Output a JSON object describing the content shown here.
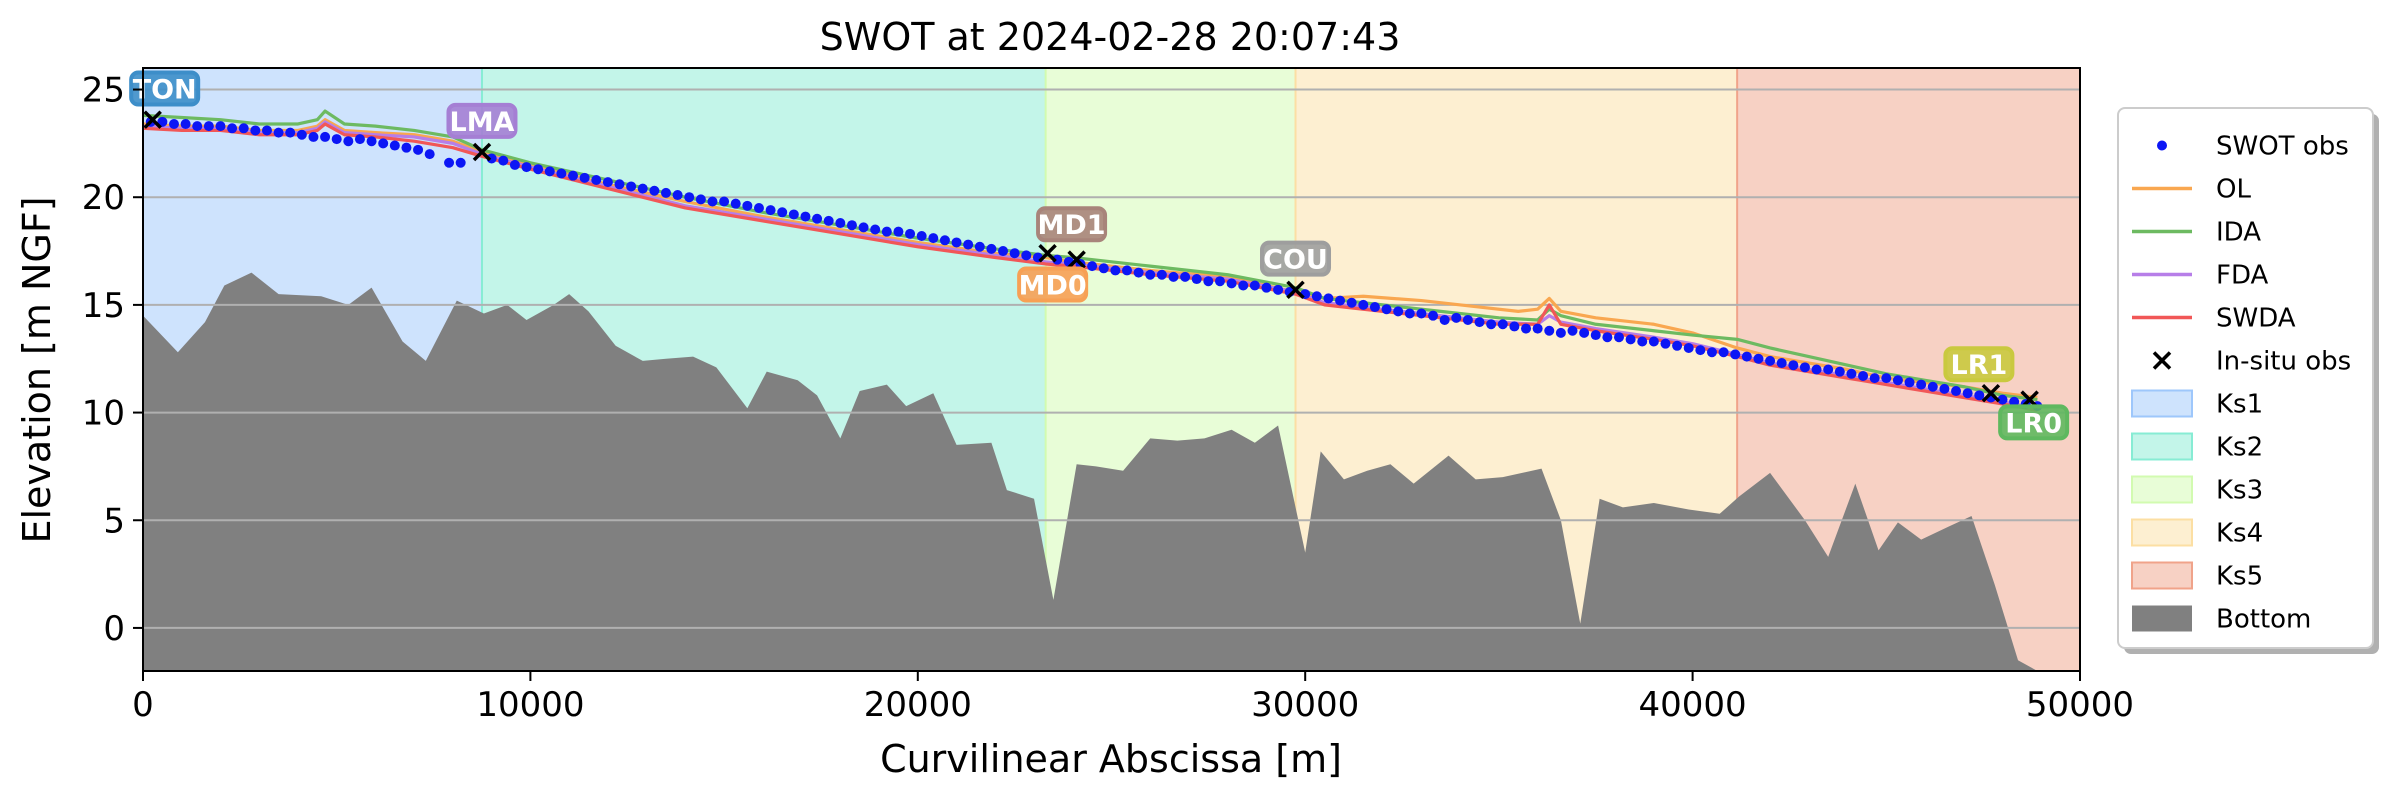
{
  "chart_data": {
    "type": "line",
    "title": "SWOT at 2024-02-28 20:07:43",
    "xlabel": "Curvilinear Abscissa [m]",
    "ylabel": "Elevation [m NGF]",
    "xlim": [
      0,
      50000
    ],
    "ylim": [
      -2,
      26
    ],
    "xticks": [
      0,
      10000,
      20000,
      30000,
      40000,
      50000
    ],
    "yticks": [
      0,
      5,
      10,
      15,
      20,
      25
    ],
    "grid": "y",
    "legend_position": "right-outside",
    "zones": [
      {
        "name": "Ks1",
        "x0": 0,
        "x1": 8750,
        "color": "#9ec7fb"
      },
      {
        "name": "Ks2",
        "x0": 8750,
        "x1": 23300,
        "color": "#87ecd4"
      },
      {
        "name": "Ks3",
        "x0": 23300,
        "x1": 29750,
        "color": "#d2fbb0"
      },
      {
        "name": "Ks4",
        "x0": 29750,
        "x1": 41150,
        "color": "#fcdfa3"
      },
      {
        "name": "Ks5",
        "x0": 41150,
        "x1": 50000,
        "color": "#f0a38a"
      }
    ],
    "bottom": {
      "name": "Bottom",
      "color": "#808080",
      "x": [
        0,
        900,
        1600,
        2100,
        2800,
        3500,
        4600,
        5300,
        5900,
        6700,
        7300,
        8100,
        8800,
        9400,
        9900,
        10600,
        11000,
        11500,
        12200,
        12900,
        13500,
        14200,
        14800,
        15600,
        16100,
        16900,
        17400,
        18000,
        18500,
        19200,
        19700,
        20400,
        21000,
        21900,
        22300,
        23000,
        23500,
        24100,
        24600,
        25300,
        26000,
        26700,
        27400,
        28100,
        28700,
        29300,
        30000,
        30400,
        31000,
        31600,
        32200,
        32800,
        33700,
        34400,
        35100,
        36100,
        36600,
        37100,
        37600,
        38200,
        39000,
        39900,
        40700,
        41200,
        42000,
        42900,
        43500,
        44200,
        44800,
        45300,
        45900,
        46600,
        47200,
        47800,
        48400,
        48900,
        50000
      ],
      "y": [
        14.5,
        12.8,
        14.2,
        15.9,
        16.5,
        15.5,
        15.4,
        15.0,
        15.8,
        13.3,
        12.4,
        15.2,
        14.6,
        15.0,
        14.3,
        15.0,
        15.5,
        14.7,
        13.1,
        12.4,
        12.5,
        12.6,
        12.1,
        10.2,
        11.9,
        11.5,
        10.8,
        8.8,
        11.0,
        11.3,
        10.3,
        10.9,
        8.5,
        8.6,
        6.4,
        6.0,
        1.3,
        7.6,
        7.5,
        7.3,
        8.8,
        8.7,
        8.8,
        9.2,
        8.6,
        9.4,
        3.5,
        8.2,
        6.9,
        7.3,
        7.6,
        6.7,
        8.0,
        6.9,
        7.0,
        7.4,
        5.0,
        0.2,
        6.0,
        5.6,
        5.8,
        5.5,
        5.3,
        6.1,
        7.2,
        5.0,
        3.3,
        6.7,
        3.6,
        4.9,
        4.1,
        4.7,
        5.2,
        2.0,
        -1.5,
        -2.0,
        -2.0
      ]
    },
    "series": [
      {
        "name": "OL",
        "color": "#f9a750",
        "x": [
          0,
          1000,
          2000,
          3000,
          4000,
          4500,
          4700,
          5200,
          6000,
          7000,
          8000,
          8750,
          10000,
          12000,
          14000,
          16000,
          18000,
          20000,
          22000,
          23300,
          24000,
          26000,
          28000,
          29750,
          30500,
          31500,
          33000,
          34500,
          35500,
          36000,
          36300,
          36600,
          37500,
          39000,
          40000,
          41150,
          42000,
          43000,
          44000,
          45000,
          46000,
          47000,
          48000,
          48900
        ],
        "y": [
          23.4,
          23.3,
          23.3,
          23.1,
          23.1,
          23.3,
          23.6,
          23.1,
          23.0,
          22.9,
          22.6,
          22.1,
          21.5,
          20.6,
          19.8,
          19.1,
          18.5,
          17.9,
          17.4,
          17.2,
          17.0,
          16.6,
          16.3,
          15.6,
          15.3,
          15.4,
          15.2,
          14.9,
          14.7,
          14.8,
          15.3,
          14.7,
          14.4,
          14.1,
          13.7,
          13.0,
          12.6,
          12.3,
          12.0,
          11.6,
          11.4,
          11.2,
          10.9,
          10.7
        ]
      },
      {
        "name": "IDA",
        "color": "#6dba61",
        "x": [
          0,
          1000,
          2000,
          3000,
          4000,
          4500,
          4700,
          5200,
          6000,
          7000,
          8000,
          8750,
          10000,
          12000,
          14000,
          16000,
          18000,
          20000,
          22000,
          23300,
          24000,
          26000,
          28000,
          29750,
          30500,
          32000,
          33500,
          35000,
          36000,
          36300,
          36600,
          37500,
          39000,
          40000,
          41150,
          42000,
          43000,
          44000,
          45000,
          46000,
          47000,
          48000,
          48900
        ],
        "y": [
          23.8,
          23.7,
          23.6,
          23.4,
          23.4,
          23.6,
          24.0,
          23.4,
          23.3,
          23.1,
          22.8,
          22.2,
          21.6,
          20.8,
          20.0,
          19.3,
          18.7,
          18.1,
          17.6,
          17.3,
          17.2,
          16.8,
          16.4,
          15.8,
          15.3,
          15.0,
          14.7,
          14.4,
          14.3,
          14.8,
          14.5,
          14.1,
          13.8,
          13.6,
          13.4,
          13.0,
          12.6,
          12.2,
          11.8,
          11.5,
          11.2,
          10.8,
          10.6
        ]
      },
      {
        "name": "FDA",
        "color": "#b77ee8",
        "x": [
          0,
          1000,
          2000,
          3000,
          4000,
          4500,
          4700,
          5200,
          6000,
          7000,
          8000,
          8750,
          10000,
          12000,
          14000,
          16000,
          18000,
          20000,
          22000,
          23300,
          24000,
          26000,
          28000,
          29750,
          30500,
          32000,
          33500,
          35000,
          36000,
          36300,
          36600,
          37500,
          39000,
          40000,
          41150,
          42000,
          43000,
          44000,
          45000,
          46000,
          47000,
          48000,
          48900
        ],
        "y": [
          23.3,
          23.2,
          23.2,
          23.0,
          23.0,
          23.2,
          23.5,
          23.0,
          22.9,
          22.8,
          22.5,
          22.0,
          21.4,
          20.5,
          19.6,
          19.0,
          18.4,
          17.8,
          17.3,
          17.0,
          16.9,
          16.5,
          16.2,
          15.6,
          15.1,
          14.8,
          14.5,
          14.2,
          14.1,
          14.5,
          14.2,
          13.9,
          13.5,
          13.2,
          12.7,
          12.3,
          12.0,
          11.7,
          11.4,
          11.1,
          10.8,
          10.5,
          10.2
        ]
      },
      {
        "name": "SWDA",
        "color": "#f15757",
        "x": [
          0,
          1000,
          2000,
          3000,
          4000,
          4500,
          4700,
          5200,
          6000,
          7000,
          8000,
          8750,
          10000,
          12000,
          14000,
          16000,
          18000,
          20000,
          22000,
          23300,
          24000,
          26000,
          28000,
          29750,
          30500,
          32000,
          33500,
          35000,
          36000,
          36300,
          36600,
          37500,
          39000,
          40000,
          41150,
          42000,
          43000,
          44000,
          45000,
          46000,
          47000,
          48000,
          48900
        ],
        "y": [
          23.2,
          23.1,
          23.1,
          22.9,
          22.9,
          23.1,
          23.4,
          22.9,
          22.8,
          22.6,
          22.3,
          21.9,
          21.3,
          20.4,
          19.5,
          18.9,
          18.3,
          17.7,
          17.2,
          16.9,
          16.8,
          16.4,
          16.1,
          15.5,
          15.0,
          14.7,
          14.4,
          14.1,
          14.1,
          15.0,
          14.1,
          13.8,
          13.4,
          13.1,
          12.6,
          12.2,
          11.9,
          11.6,
          11.3,
          11.0,
          10.7,
          10.4,
          10.1
        ]
      }
    ],
    "swot_obs": {
      "name": "SWOT obs",
      "color": "#0c16f5",
      "x": [
        200,
        500,
        800,
        1100,
        1400,
        1700,
        2000,
        2300,
        2600,
        2900,
        3200,
        3500,
        3800,
        4100,
        4400,
        4700,
        5000,
        5300,
        5600,
        5900,
        6200,
        6500,
        6800,
        7100,
        7400,
        7900,
        8200,
        9000,
        9300,
        9600,
        9900,
        10200,
        10500,
        10800,
        11100,
        11400,
        11700,
        12000,
        12300,
        12600,
        12900,
        13200,
        13500,
        13800,
        14100,
        14400,
        14700,
        15000,
        15300,
        15600,
        15900,
        16200,
        16500,
        16800,
        17100,
        17400,
        17700,
        18000,
        18300,
        18600,
        18900,
        19200,
        19500,
        19800,
        20100,
        20400,
        20700,
        21000,
        21300,
        21600,
        21900,
        22200,
        22500,
        22800,
        23100,
        23600,
        23900,
        24200,
        24500,
        24800,
        25100,
        25400,
        25700,
        26000,
        26300,
        26600,
        26900,
        27200,
        27500,
        27800,
        28100,
        28400,
        28700,
        29000,
        29300,
        29600,
        30000,
        30300,
        30600,
        30900,
        31200,
        31500,
        31800,
        32100,
        32400,
        32700,
        33000,
        33300,
        33600,
        33900,
        34200,
        34500,
        34800,
        35100,
        35400,
        35700,
        36000,
        36300,
        36600,
        36900,
        37200,
        37500,
        37800,
        38100,
        38400,
        38700,
        39000,
        39300,
        39600,
        39900,
        40200,
        40500,
        40800,
        41100,
        41400,
        41700,
        42000,
        42300,
        42600,
        42900,
        43200,
        43500,
        43800,
        44100,
        44400,
        44700,
        45000,
        45300,
        45600,
        45900,
        46200,
        46500,
        46800,
        47100,
        47400,
        47700,
        48000,
        48300,
        48600,
        48900
      ],
      "y": [
        23.5,
        23.5,
        23.4,
        23.4,
        23.3,
        23.3,
        23.3,
        23.2,
        23.2,
        23.1,
        23.1,
        23.0,
        23.0,
        22.9,
        22.8,
        22.8,
        22.7,
        22.6,
        22.7,
        22.6,
        22.5,
        22.4,
        22.3,
        22.2,
        22.0,
        21.6,
        21.6,
        21.8,
        21.7,
        21.5,
        21.4,
        21.3,
        21.2,
        21.1,
        21.0,
        20.9,
        20.8,
        20.7,
        20.6,
        20.5,
        20.4,
        20.3,
        20.2,
        20.1,
        20.0,
        19.9,
        19.8,
        19.8,
        19.7,
        19.6,
        19.5,
        19.4,
        19.3,
        19.2,
        19.1,
        19.0,
        18.9,
        18.8,
        18.7,
        18.6,
        18.5,
        18.4,
        18.4,
        18.3,
        18.2,
        18.1,
        18.0,
        17.9,
        17.8,
        17.7,
        17.6,
        17.5,
        17.4,
        17.3,
        17.2,
        17.1,
        17.0,
        16.9,
        16.8,
        16.7,
        16.6,
        16.6,
        16.5,
        16.4,
        16.4,
        16.3,
        16.3,
        16.2,
        16.1,
        16.1,
        16.0,
        15.9,
        15.9,
        15.8,
        15.7,
        15.6,
        15.5,
        15.4,
        15.3,
        15.2,
        15.1,
        15.0,
        14.9,
        14.8,
        14.7,
        14.6,
        14.6,
        14.5,
        14.3,
        14.4,
        14.3,
        14.2,
        14.1,
        14.1,
        14.0,
        13.9,
        13.9,
        13.8,
        13.7,
        13.8,
        13.7,
        13.6,
        13.5,
        13.5,
        13.4,
        13.3,
        13.3,
        13.2,
        13.1,
        13.0,
        12.9,
        12.8,
        12.8,
        12.7,
        12.6,
        12.5,
        12.4,
        12.3,
        12.2,
        12.1,
        12.0,
        12.0,
        11.9,
        11.8,
        11.7,
        11.6,
        11.6,
        11.5,
        11.4,
        11.3,
        11.2,
        11.1,
        11.0,
        10.9,
        10.8,
        10.7,
        10.6,
        10.5,
        10.4,
        10.3
      ]
    },
    "insitu_obs": {
      "name": "In-situ obs",
      "points": [
        {
          "station": "TON",
          "x": 250,
          "y": 23.6,
          "color": "#3d8ec9",
          "label_dx": 0.3,
          "label_dy": 1.4
        },
        {
          "station": "LMA",
          "x": 8750,
          "y": 22.1,
          "color": "#a57fd4",
          "label_dx": 0,
          "label_dy": 1.4
        },
        {
          "station": "MD1",
          "x": 23350,
          "y": 17.4,
          "color": "#a8847a",
          "label_dx": 0.6,
          "label_dy": 1.3
        },
        {
          "station": "MD0",
          "x": 24100,
          "y": 17.1,
          "color": "#f7a055",
          "label_dx": -0.6,
          "label_dy": -1.2
        },
        {
          "station": "COU",
          "x": 29750,
          "y": 15.7,
          "color": "#9e9e9e",
          "label_dx": 0,
          "label_dy": 1.4
        },
        {
          "station": "LR1",
          "x": 47700,
          "y": 10.9,
          "color": "#c9c93f",
          "label_dx": -0.3,
          "label_dy": 1.3
        },
        {
          "station": "LR0",
          "x": 48700,
          "y": 10.6,
          "color": "#5fb85f",
          "label_dx": 0.1,
          "label_dy": -1.1
        }
      ]
    },
    "legend": [
      "SWOT obs",
      "OL",
      "IDA",
      "FDA",
      "SWDA",
      "In-situ obs",
      "Ks1",
      "Ks2",
      "Ks3",
      "Ks4",
      "Ks5",
      "Bottom"
    ]
  }
}
